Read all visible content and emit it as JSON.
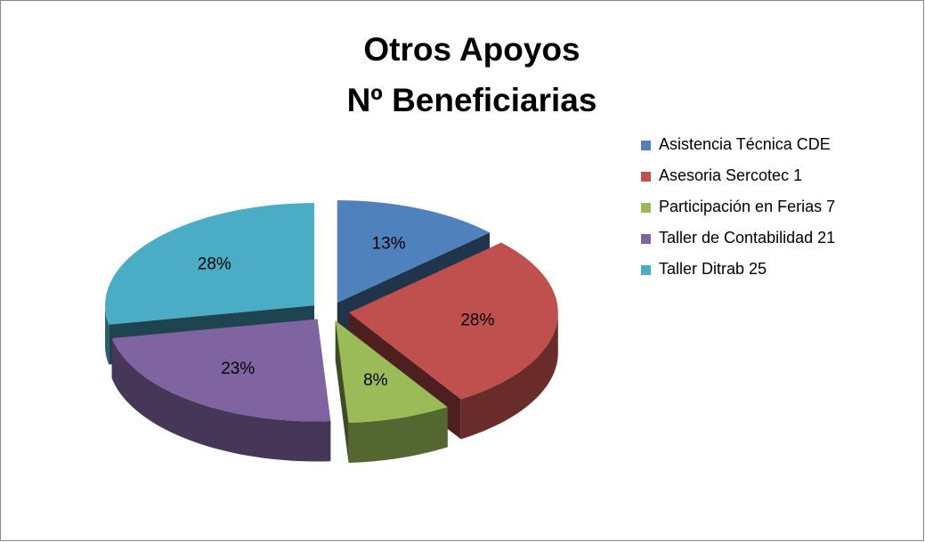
{
  "chart_data": {
    "type": "pie3d",
    "title": [
      "Otros Apoyos",
      "Nº Beneficiarias"
    ],
    "categories": [
      "Asistencia Técnica CDE",
      "Asesoria Sercotec 1",
      "Participación en Ferias 7",
      "Taller de Contabilidad 21",
      "Taller Ditrab 25"
    ],
    "values": [
      13,
      28,
      8,
      23,
      28
    ],
    "value_labels": [
      "13%",
      "28%",
      "8%",
      "23%",
      "28%"
    ],
    "colors": [
      "#4f81bd",
      "#c0504d",
      "#9bbb59",
      "#8064a2",
      "#4bacc6"
    ],
    "legend": "right"
  }
}
